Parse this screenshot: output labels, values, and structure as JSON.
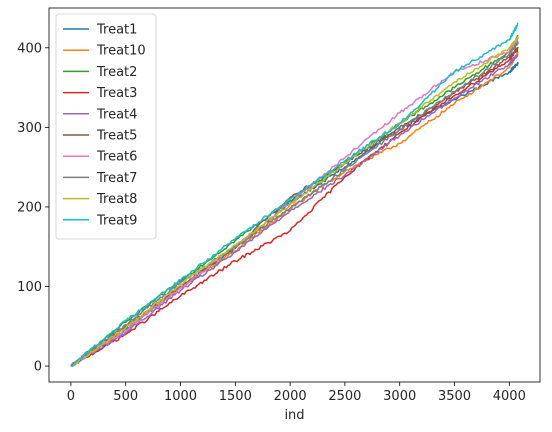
{
  "chart_data": {
    "type": "line",
    "xlabel": "ind",
    "ylabel": "",
    "xlim": [
      -200,
      4280
    ],
    "ylim": [
      -20,
      450
    ],
    "xticks": [
      0,
      500,
      1000,
      1500,
      2000,
      2500,
      3000,
      3500,
      4000
    ],
    "yticks": [
      0,
      100,
      200,
      300,
      400
    ],
    "grid": false,
    "legend": "top-left",
    "x": [
      0,
      500,
      1000,
      1500,
      2000,
      2500,
      3000,
      3500,
      4000,
      4080
    ],
    "series": [
      {
        "name": "Treat1",
        "color": "#1f77b4",
        "values": [
          0,
          45,
          100,
          148,
          205,
          250,
          298,
          335,
          370,
          380
        ]
      },
      {
        "name": "Treat10",
        "color": "#ff7f0e",
        "values": [
          0,
          48,
          98,
          145,
          198,
          245,
          280,
          330,
          375,
          394
        ]
      },
      {
        "name": "Treat2",
        "color": "#2ca02c",
        "values": [
          0,
          55,
          107,
          158,
          208,
          255,
          305,
          350,
          395,
          415
        ]
      },
      {
        "name": "Treat3",
        "color": "#d62728",
        "values": [
          0,
          40,
          88,
          132,
          170,
          238,
          293,
          340,
          385,
          399
        ]
      },
      {
        "name": "Treat4",
        "color": "#9467bd",
        "values": [
          0,
          42,
          95,
          143,
          195,
          240,
          290,
          337,
          380,
          392
        ]
      },
      {
        "name": "Treat5",
        "color": "#8c564b",
        "values": [
          0,
          50,
          100,
          150,
          212,
          255,
          300,
          343,
          388,
          401
        ]
      },
      {
        "name": "Treat6",
        "color": "#e377c2",
        "values": [
          0,
          45,
          98,
          150,
          205,
          262,
          318,
          370,
          395,
          413
        ]
      },
      {
        "name": "Treat7",
        "color": "#7f7f7f",
        "values": [
          0,
          52,
          105,
          150,
          198,
          247,
          297,
          345,
          392,
          407
        ]
      },
      {
        "name": "Treat8",
        "color": "#bcbd22",
        "values": [
          0,
          48,
          103,
          152,
          203,
          255,
          305,
          357,
          400,
          412
        ]
      },
      {
        "name": "Treat9",
        "color": "#17becf",
        "values": [
          0,
          57,
          108,
          160,
          210,
          258,
          305,
          370,
          410,
          430
        ]
      }
    ]
  }
}
